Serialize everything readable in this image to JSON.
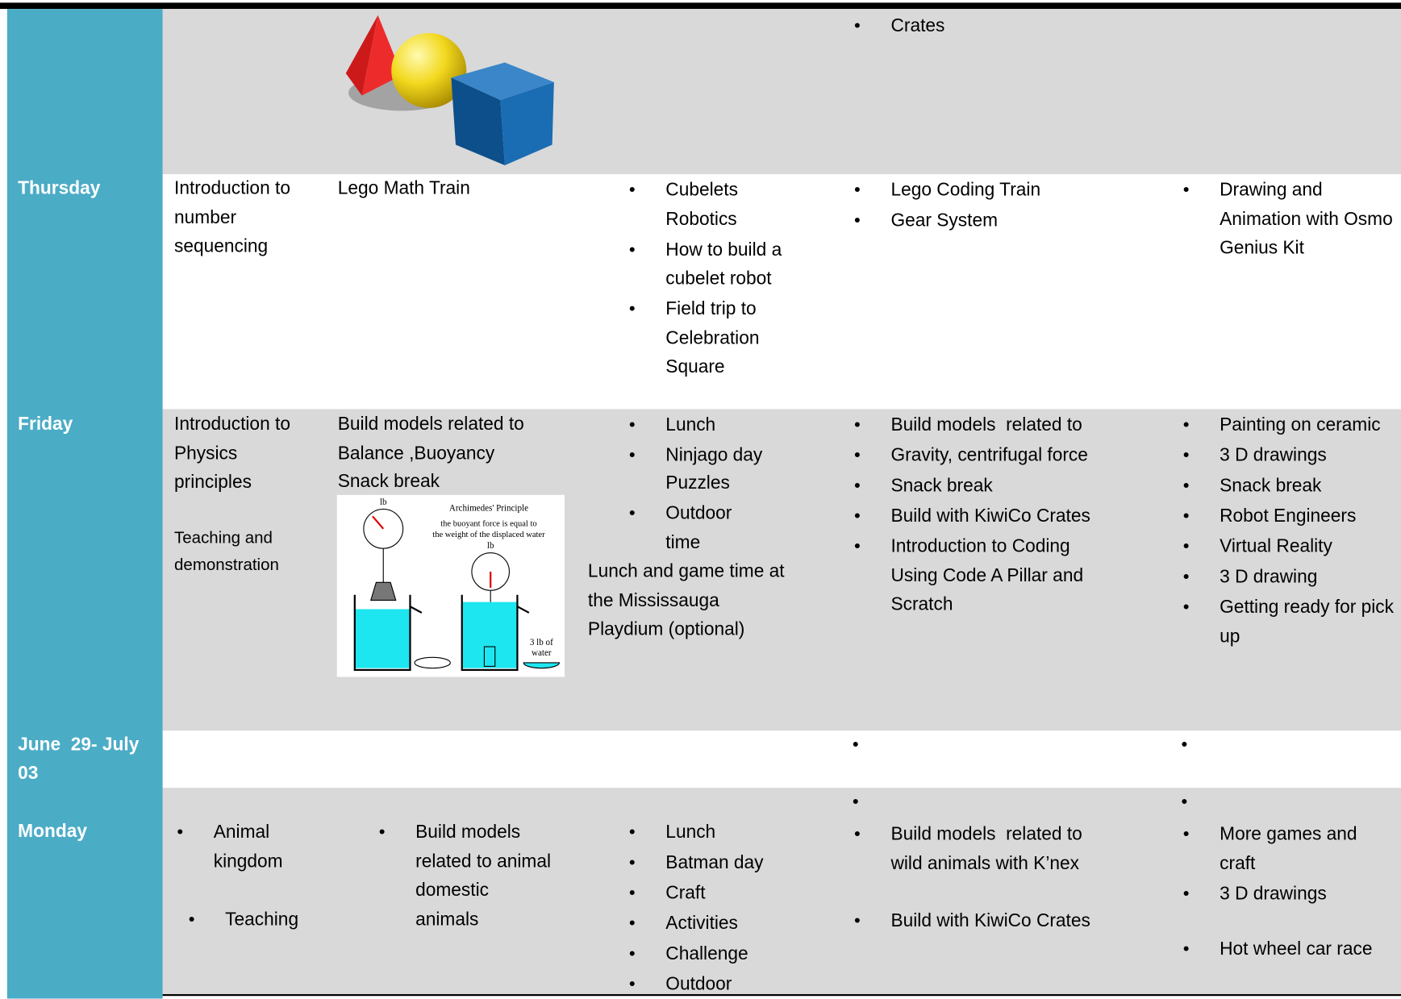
{
  "rows": [
    {
      "col4": [
        "Crates"
      ]
    },
    {
      "label": "Thursday",
      "col1": [
        "Introduction to number sequencing"
      ],
      "col2": [
        "Lego Math Train"
      ],
      "col3": [
        "Cubelets Robotics",
        "How to build a cubelet robot",
        "Field trip to Celebration Square"
      ],
      "col4": [
        "Lego Coding Train",
        "Gear System"
      ],
      "col5": [
        "Drawing and Animation with Osmo Genius Kit"
      ]
    },
    {
      "label": "Friday",
      "col1": [
        "Introduction to Physics principles",
        "Teaching and demonstration"
      ],
      "col2": [
        "Build models related to Balance ,Buoyancy",
        "Snack break"
      ],
      "col3": [
        "Lunch",
        "Ninjago day",
        "Puzzles",
        "Outdoor time",
        "Lunch and game time at the Mississauga Playdium (optional)"
      ],
      "col4": [
        "Build models  related to",
        "Gravity, centrifugal force",
        "Snack break",
        "Build with KiwiCo Crates",
        "Introduction to Coding Using Code A Pillar and Scratch"
      ],
      "col5": [
        "Painting on ceramic",
        "3 D drawings",
        "Snack break",
        "Robot Engineers",
        "Virtual Reality",
        "3 D drawing",
        "Getting ready for pick up"
      ]
    },
    {
      "label": "June  29- July 03"
    },
    {
      "label": "Monday",
      "col1": [
        "Animal kingdom",
        "Teaching"
      ],
      "col2": [
        "Build models related to animal domestic animals"
      ],
      "col3": [
        "Lunch",
        "Batman day",
        "Craft",
        "Activities",
        "Challenge",
        "Outdoor"
      ],
      "col4": [
        "Build models  related to wild animals with K’nex",
        "Build with KiwiCo Crates"
      ],
      "col5": [
        "More games and craft",
        "3 D drawings",
        "Hot wheel car race"
      ]
    }
  ],
  "figure": {
    "title": "Archimedes' Principle",
    "caption": [
      "the buoyant force is equal to",
      "the weight of the displaced water"
    ],
    "unit": "lb",
    "water_label": [
      "3 lb of",
      "water"
    ]
  }
}
